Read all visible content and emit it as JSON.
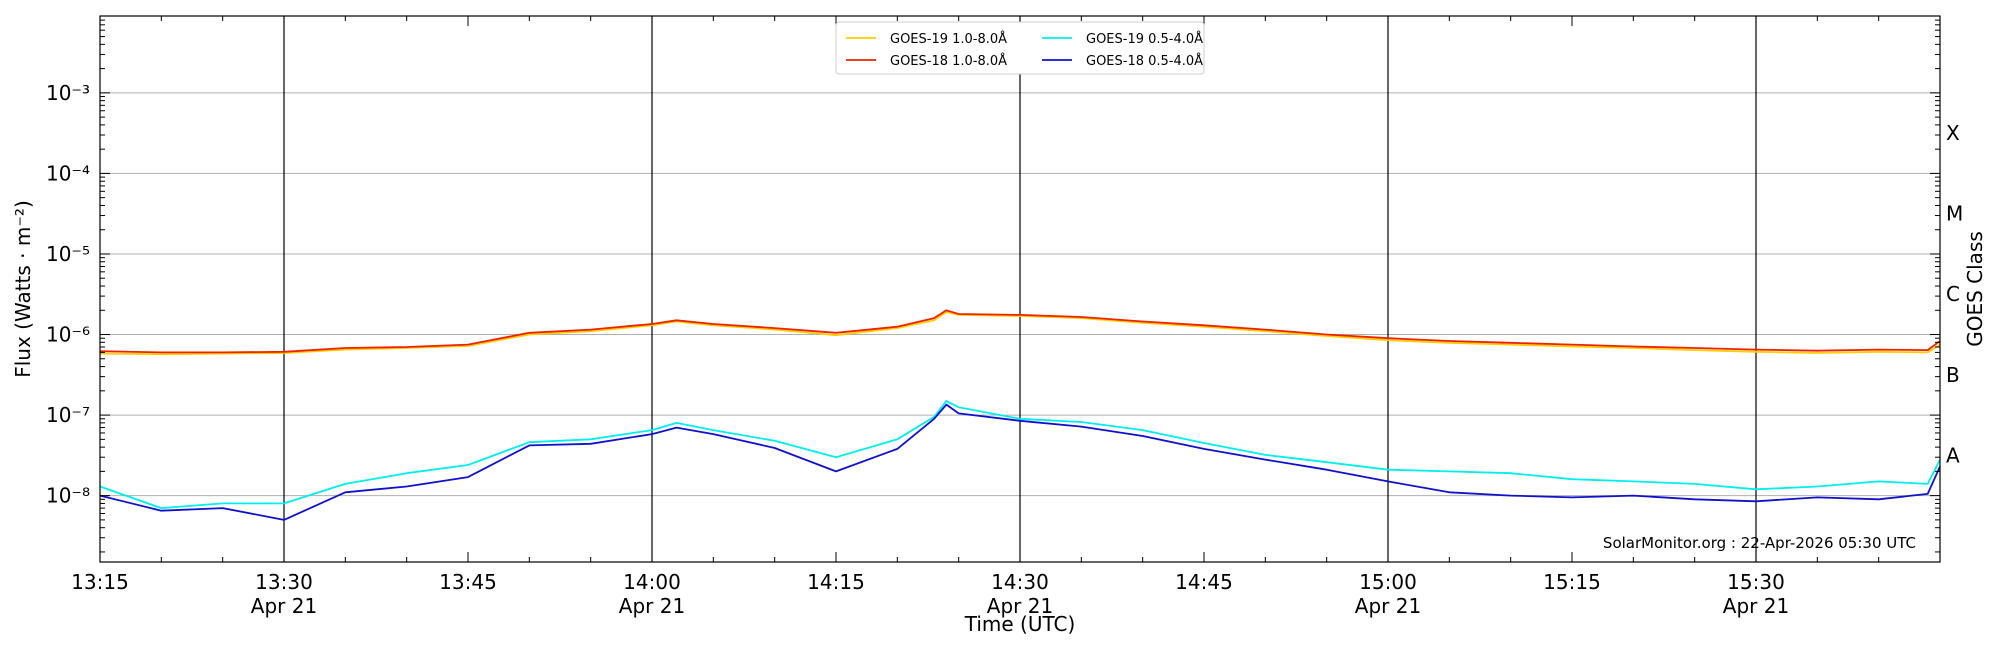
{
  "chart_data": {
    "type": "line",
    "xlabel": "Time (UTC)",
    "ylabel": "Flux (Watts · m⁻²)",
    "y2label": "GOES Class",
    "yscale": "log",
    "ylim": [
      1.5e-09,
      0.009
    ],
    "xlim": [
      "2026-04-21 13:15",
      "2026-04-21 15:45"
    ],
    "grid": true,
    "legend_position": "top-center",
    "credit": "SolarMonitor.org : 22-Apr-2026 05:30 UTC",
    "x_tick_labels": [
      "13:15",
      "13:30\nApr 21",
      "13:45",
      "14:00\nApr 21",
      "14:15",
      "14:30\nApr 21",
      "14:45",
      "15:00\nApr 21",
      "15:15",
      "15:30\nApr 21"
    ],
    "y_tick_labels": [
      "10⁻⁸",
      "10⁻⁷",
      "10⁻⁶",
      "10⁻⁵",
      "10⁻⁴",
      "10⁻³"
    ],
    "class_labels": [
      "A",
      "B",
      "C",
      "M",
      "X"
    ],
    "x": [
      "13:15",
      "13:20",
      "13:25",
      "13:30",
      "13:35",
      "13:40",
      "13:45",
      "13:50",
      "13:55",
      "14:00",
      "14:02",
      "14:05",
      "14:10",
      "14:15",
      "14:20",
      "14:23",
      "14:24",
      "14:25",
      "14:30",
      "14:35",
      "14:40",
      "14:45",
      "14:50",
      "14:55",
      "15:00",
      "15:05",
      "15:10",
      "15:15",
      "15:20",
      "15:25",
      "15:30",
      "15:35",
      "15:40",
      "15:44",
      "15:45"
    ],
    "series": [
      {
        "name": "GOES-19 1.0-8.0Å",
        "color": "#ffcc00",
        "values": [
          5.8e-07,
          5.7e-07,
          5.8e-07,
          5.9e-07,
          6.5e-07,
          6.8e-07,
          7.2e-07,
          1e-06,
          1.1e-06,
          1.3e-06,
          1.45e-06,
          1.3e-06,
          1.15e-06,
          9.8e-07,
          1.2e-06,
          1.5e-06,
          1.9e-06,
          1.75e-06,
          1.7e-06,
          1.6e-06,
          1.4e-06,
          1.25e-06,
          1.1e-06,
          9.6e-07,
          8.5e-07,
          7.9e-07,
          7.5e-07,
          7.1e-07,
          6.8e-07,
          6.4e-07,
          6.1e-07,
          5.9e-07,
          6.1e-07,
          6e-07,
          7.5e-07
        ]
      },
      {
        "name": "GOES-18 1.0-8.0Å",
        "color": "#ee2200",
        "values": [
          6.2e-07,
          6e-07,
          6e-07,
          6.1e-07,
          6.8e-07,
          7e-07,
          7.5e-07,
          1.05e-06,
          1.15e-06,
          1.35e-06,
          1.5e-06,
          1.35e-06,
          1.2e-06,
          1.05e-06,
          1.25e-06,
          1.6e-06,
          2e-06,
          1.8e-06,
          1.75e-06,
          1.65e-06,
          1.45e-06,
          1.3e-06,
          1.15e-06,
          1e-06,
          9e-07,
          8.3e-07,
          7.9e-07,
          7.5e-07,
          7.1e-07,
          6.8e-07,
          6.5e-07,
          6.3e-07,
          6.5e-07,
          6.4e-07,
          8.3e-07
        ]
      },
      {
        "name": "GOES-19 0.5-4.0Å",
        "color": "#00eeee",
        "values": [
          1.3e-08,
          7e-09,
          8e-09,
          8e-09,
          1.4e-08,
          1.9e-08,
          2.4e-08,
          4.6e-08,
          5e-08,
          6.5e-08,
          8e-08,
          6.5e-08,
          4.8e-08,
          3e-08,
          5e-08,
          9.5e-08,
          1.5e-07,
          1.25e-07,
          9e-08,
          8.2e-08,
          6.5e-08,
          4.5e-08,
          3.2e-08,
          2.6e-08,
          2.1e-08,
          2e-08,
          1.9e-08,
          1.6e-08,
          1.5e-08,
          1.4e-08,
          1.2e-08,
          1.3e-08,
          1.5e-08,
          1.4e-08,
          2.8e-08
        ]
      },
      {
        "name": "GOES-18 0.5-4.0Å",
        "color": "#1111cc",
        "values": [
          1e-08,
          6.5e-09,
          7e-09,
          5e-09,
          1.1e-08,
          1.3e-08,
          1.7e-08,
          4.2e-08,
          4.4e-08,
          5.8e-08,
          7e-08,
          5.8e-08,
          3.9e-08,
          2e-08,
          3.8e-08,
          9e-08,
          1.35e-07,
          1.05e-07,
          8.5e-08,
          7.2e-08,
          5.5e-08,
          3.8e-08,
          2.8e-08,
          2.1e-08,
          1.5e-08,
          1.1e-08,
          1e-08,
          9.5e-09,
          1e-08,
          9e-09,
          8.5e-09,
          9.5e-09,
          9e-09,
          1.05e-08,
          2.3e-08
        ]
      }
    ]
  }
}
